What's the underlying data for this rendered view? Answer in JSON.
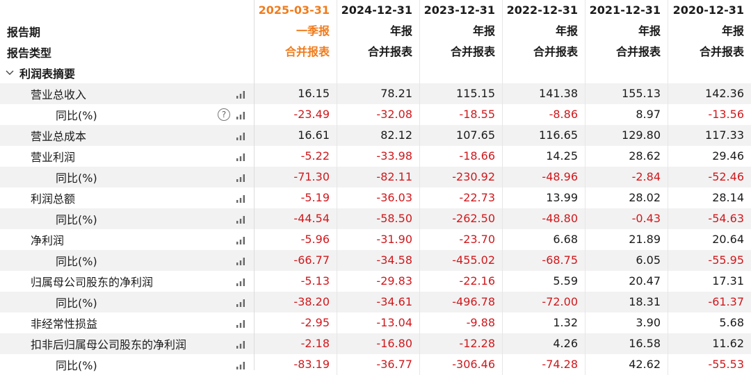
{
  "header": {
    "dates": [
      "2025-03-31",
      "2024-12-31",
      "2023-12-31",
      "2022-12-31",
      "2021-12-31",
      "2020-12-31"
    ],
    "period_label": "报告期",
    "periods": [
      "一季报",
      "年报",
      "年报",
      "年报",
      "年报",
      "年报"
    ],
    "type_label": "报告类型",
    "types": [
      "合并报表",
      "合并报表",
      "合并报表",
      "合并报表",
      "合并报表",
      "合并报表"
    ]
  },
  "section": {
    "title": "利润表摘要",
    "chevron": "chevron-down-icon"
  },
  "rows": [
    {
      "label": "营业总收入",
      "sub": false,
      "help": false,
      "values": [
        "16.15",
        "78.21",
        "115.15",
        "141.38",
        "155.13",
        "142.36"
      ]
    },
    {
      "label": "同比(%)",
      "sub": true,
      "help": true,
      "values": [
        "-23.49",
        "-32.08",
        "-18.55",
        "-8.86",
        "8.97",
        "-13.56"
      ]
    },
    {
      "label": "营业总成本",
      "sub": false,
      "help": false,
      "values": [
        "16.61",
        "82.12",
        "107.65",
        "116.65",
        "129.80",
        "117.33"
      ]
    },
    {
      "label": "营业利润",
      "sub": false,
      "help": false,
      "values": [
        "-5.22",
        "-33.98",
        "-18.66",
        "14.25",
        "28.62",
        "29.46"
      ]
    },
    {
      "label": "同比(%)",
      "sub": true,
      "help": false,
      "values": [
        "-71.30",
        "-82.11",
        "-230.92",
        "-48.96",
        "-2.84",
        "-52.46"
      ]
    },
    {
      "label": "利润总额",
      "sub": false,
      "help": false,
      "values": [
        "-5.19",
        "-36.03",
        "-22.73",
        "13.99",
        "28.02",
        "28.14"
      ]
    },
    {
      "label": "同比(%)",
      "sub": true,
      "help": false,
      "values": [
        "-44.54",
        "-58.50",
        "-262.50",
        "-48.80",
        "-0.43",
        "-54.63"
      ]
    },
    {
      "label": "净利润",
      "sub": false,
      "help": false,
      "values": [
        "-5.96",
        "-31.90",
        "-23.70",
        "6.68",
        "21.89",
        "20.64"
      ]
    },
    {
      "label": "同比(%)",
      "sub": true,
      "help": false,
      "values": [
        "-66.77",
        "-34.58",
        "-455.02",
        "-68.75",
        "6.05",
        "-55.95"
      ]
    },
    {
      "label": "归属母公司股东的净利润",
      "sub": false,
      "help": false,
      "values": [
        "-5.13",
        "-29.83",
        "-22.16",
        "5.59",
        "20.47",
        "17.31"
      ]
    },
    {
      "label": "同比(%)",
      "sub": true,
      "help": false,
      "values": [
        "-38.20",
        "-34.61",
        "-496.78",
        "-72.00",
        "18.31",
        "-61.37"
      ]
    },
    {
      "label": "非经常性损益",
      "sub": false,
      "help": false,
      "values": [
        "-2.95",
        "-13.04",
        "-9.88",
        "1.32",
        "3.90",
        "5.68"
      ]
    },
    {
      "label": "扣非后归属母公司股东的净利润",
      "sub": false,
      "help": false,
      "values": [
        "-2.18",
        "-16.80",
        "-12.28",
        "4.26",
        "16.58",
        "11.62"
      ]
    },
    {
      "label": "同比(%)",
      "sub": true,
      "help": false,
      "values": [
        "-83.19",
        "-36.77",
        "-306.46",
        "-74.28",
        "42.62",
        "-55.53"
      ]
    }
  ],
  "colors": {
    "accent": "#f07c1d",
    "negative": "#d0181c",
    "shade": "#f2f2f2"
  },
  "icons": {
    "chart": "bar-chart-icon",
    "help": "help-circle-icon"
  },
  "help_glyph": "?"
}
